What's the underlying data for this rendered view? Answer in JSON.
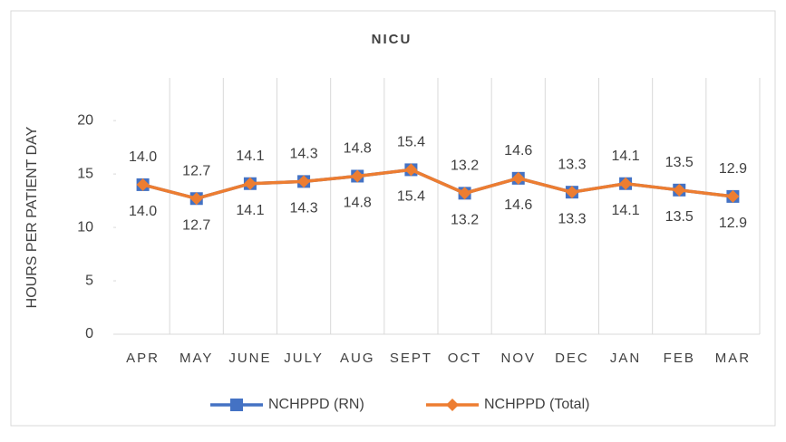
{
  "chart_data": {
    "type": "line",
    "title": "NICU",
    "y_label": "HOURS PER PATIENT DAY",
    "categories": [
      "APR",
      "MAY",
      "JUNE",
      "JULY",
      "AUG",
      "SEPT",
      "OCT",
      "NOV",
      "DEC",
      "JAN",
      "FEB",
      "MAR"
    ],
    "series": [
      {
        "name": "NCHPPD (RN)",
        "color": "#4472c4",
        "marker": "square",
        "values": [
          14.0,
          12.7,
          14.1,
          14.3,
          14.8,
          15.4,
          13.2,
          14.6,
          13.3,
          14.1,
          13.5,
          12.9
        ],
        "value_labels": [
          "14.0",
          "12.7",
          "14.1",
          "14.3",
          "14.8",
          "15.4",
          "13.2",
          "14.6",
          "13.3",
          "14.1",
          "13.5",
          "12.9"
        ]
      },
      {
        "name": "NCHPPD (Total)",
        "color": "#ed7d31",
        "marker": "diamond",
        "values": [
          14.0,
          12.7,
          14.1,
          14.3,
          14.8,
          15.4,
          13.2,
          14.6,
          13.3,
          14.1,
          13.5,
          12.9
        ],
        "value_labels": [
          "14.0",
          "12.7",
          "14.1",
          "14.3",
          "14.8",
          "15.4",
          "13.2",
          "14.6",
          "13.3",
          "14.1",
          "13.5",
          "12.9"
        ]
      }
    ],
    "ylim": [
      0,
      24
    ],
    "yticks": [
      0,
      5,
      10,
      15,
      20
    ],
    "grid": true,
    "legend": "bottom"
  }
}
